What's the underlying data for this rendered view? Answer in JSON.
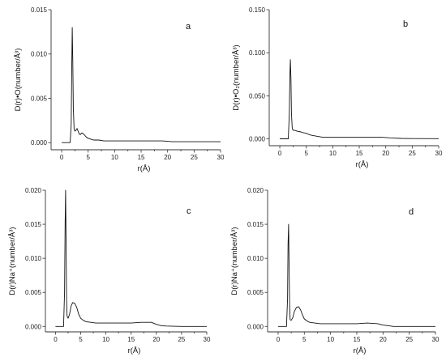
{
  "chart_data": [
    {
      "type": "line",
      "panel_label": "a",
      "xlabel": "r(Å)",
      "ylabel": "D(r)•O(number/Å³)",
      "xlim": [
        -2,
        30
      ],
      "ylim": [
        -0.0008,
        0.015
      ],
      "xticks": [
        0,
        5,
        10,
        15,
        20,
        25,
        30
      ],
      "yticks": [
        0.0,
        0.005,
        0.01,
        0.015
      ],
      "x_tick_labels": [
        "0",
        "5",
        "10",
        "15",
        "20",
        "25",
        "30"
      ],
      "y_tick_labels": [
        "0.000",
        "0.005",
        "0.010",
        "0.015"
      ],
      "grid": false,
      "series": [
        {
          "x": [
            0,
            1.2,
            1.6,
            1.8,
            1.9,
            2.0,
            2.1,
            2.2,
            2.35,
            2.5,
            2.7,
            2.9,
            3.1,
            3.3,
            3.5,
            3.8,
            4.1,
            4.4,
            4.7,
            5.0,
            5.5,
            6,
            7,
            8,
            10,
            12,
            15,
            17,
            19,
            21,
            23,
            25,
            30
          ],
          "y": [
            0,
            0,
            0,
            0.002,
            0.0085,
            0.013,
            0.009,
            0.004,
            0.0015,
            0.0013,
            0.0014,
            0.0016,
            0.0013,
            0.001,
            0.0009,
            0.0011,
            0.001,
            0.0008,
            0.0006,
            0.0005,
            0.0004,
            0.0003,
            0.0003,
            0.0002,
            0.0002,
            0.0002,
            0.0002,
            0.0002,
            0.0002,
            0.0001,
            0.0001,
            0.0001,
            0.0001
          ]
        }
      ]
    },
    {
      "type": "line",
      "panel_label": "b",
      "xlabel": "r(Å)",
      "ylabel": "D(r)•O₂(number/Å³)",
      "xlim": [
        -2,
        30
      ],
      "ylim": [
        -0.008,
        0.15
      ],
      "xticks": [
        0,
        5,
        10,
        15,
        20,
        25,
        30
      ],
      "yticks": [
        0.0,
        0.05,
        0.1,
        0.15
      ],
      "x_tick_labels": [
        "0",
        "5",
        "10",
        "15",
        "20",
        "25",
        "30"
      ],
      "y_tick_labels": [
        "0.000",
        "0.050",
        "0.100",
        "0.150"
      ],
      "grid": false,
      "series": [
        {
          "x": [
            0,
            1.2,
            1.6,
            1.8,
            1.9,
            2.0,
            2.1,
            2.2,
            2.35,
            2.5,
            2.8,
            3.2,
            3.6,
            4.0,
            4.5,
            5.0,
            5.5,
            6,
            7,
            8,
            10,
            12,
            15,
            17,
            19,
            21,
            23,
            25,
            30
          ],
          "y": [
            0,
            0,
            0,
            0.03,
            0.075,
            0.092,
            0.07,
            0.03,
            0.012,
            0.01,
            0.01,
            0.009,
            0.0085,
            0.008,
            0.007,
            0.0065,
            0.005,
            0.004,
            0.003,
            0.002,
            0.002,
            0.002,
            0.002,
            0.002,
            0.002,
            0.001,
            0.0005,
            0.0003,
            0.0002
          ]
        }
      ]
    },
    {
      "type": "line",
      "panel_label": "c",
      "xlabel": "r(Å)",
      "ylabel": "D(r)Na⁺(number/Å³)",
      "xlim": [
        -2,
        30
      ],
      "ylim": [
        -0.0008,
        0.02
      ],
      "xticks": [
        0,
        5,
        10,
        15,
        20,
        25,
        30
      ],
      "yticks": [
        0.0,
        0.005,
        0.01,
        0.015,
        0.02
      ],
      "x_tick_labels": [
        "0",
        "5",
        "10",
        "15",
        "20",
        "25",
        "30"
      ],
      "y_tick_labels": [
        "0.000",
        "0.005",
        "0.010",
        "0.015",
        "0.020"
      ],
      "grid": false,
      "series": [
        {
          "x": [
            0,
            1.2,
            1.6,
            1.8,
            1.9,
            2.0,
            2.1,
            2.2,
            2.3,
            2.5,
            2.8,
            3.1,
            3.4,
            3.8,
            4.2,
            4.6,
            5.0,
            5.5,
            6,
            7,
            8,
            10,
            12,
            15,
            17,
            19,
            20,
            21,
            22,
            25,
            30
          ],
          "y": [
            0,
            0,
            0,
            0.005,
            0.015,
            0.02,
            0.012,
            0.004,
            0.0015,
            0.0012,
            0.0018,
            0.003,
            0.0035,
            0.0034,
            0.0028,
            0.0018,
            0.0012,
            0.0009,
            0.0007,
            0.0006,
            0.0005,
            0.0005,
            0.0005,
            0.0005,
            0.0006,
            0.0006,
            0.0003,
            0.0001,
            5e-05,
            0,
            0
          ]
        }
      ]
    },
    {
      "type": "line",
      "panel_label": "d",
      "xlabel": "r(Å)",
      "ylabel": "D(r)Na⁺(number/Å³)",
      "xlim": [
        -2,
        30
      ],
      "ylim": [
        -0.0008,
        0.02
      ],
      "xticks": [
        0,
        5,
        10,
        15,
        20,
        25,
        30
      ],
      "yticks": [
        0.0,
        0.005,
        0.01,
        0.015,
        0.02
      ],
      "x_tick_labels": [
        "0",
        "5",
        "10",
        "15",
        "20",
        "25",
        "30"
      ],
      "y_tick_labels": [
        "0.000",
        "0.005",
        "0.010",
        "0.015",
        "0.020"
      ],
      "grid": false,
      "series": [
        {
          "x": [
            0,
            1.2,
            1.6,
            1.8,
            1.9,
            2.0,
            2.1,
            2.2,
            2.3,
            2.5,
            2.8,
            3.1,
            3.5,
            3.9,
            4.3,
            4.7,
            5.0,
            5.5,
            6,
            7,
            8,
            10,
            12,
            15,
            17,
            19,
            20,
            21,
            22,
            25,
            30
          ],
          "y": [
            0,
            0,
            0,
            0.004,
            0.012,
            0.015,
            0.009,
            0.003,
            0.001,
            0.0009,
            0.0013,
            0.0022,
            0.0028,
            0.0029,
            0.0024,
            0.0016,
            0.0011,
            0.0008,
            0.0006,
            0.0005,
            0.0004,
            0.0004,
            0.0004,
            0.0004,
            0.0005,
            0.0004,
            0.0002,
            0.0001,
            0,
            0,
            0
          ]
        }
      ]
    }
  ]
}
